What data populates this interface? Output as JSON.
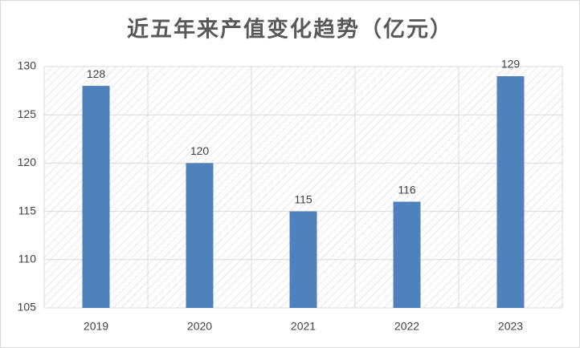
{
  "chart_data": {
    "type": "bar",
    "title": "近五年来产值变化趋势（亿元）",
    "categories": [
      "2019",
      "2020",
      "2021",
      "2022",
      "2023"
    ],
    "values": [
      128,
      120,
      115,
      116,
      129
    ],
    "color": "#4f81bd",
    "ylim": [
      105,
      130
    ],
    "yticks": [
      105,
      110,
      115,
      120,
      125,
      130
    ],
    "grid": true
  }
}
